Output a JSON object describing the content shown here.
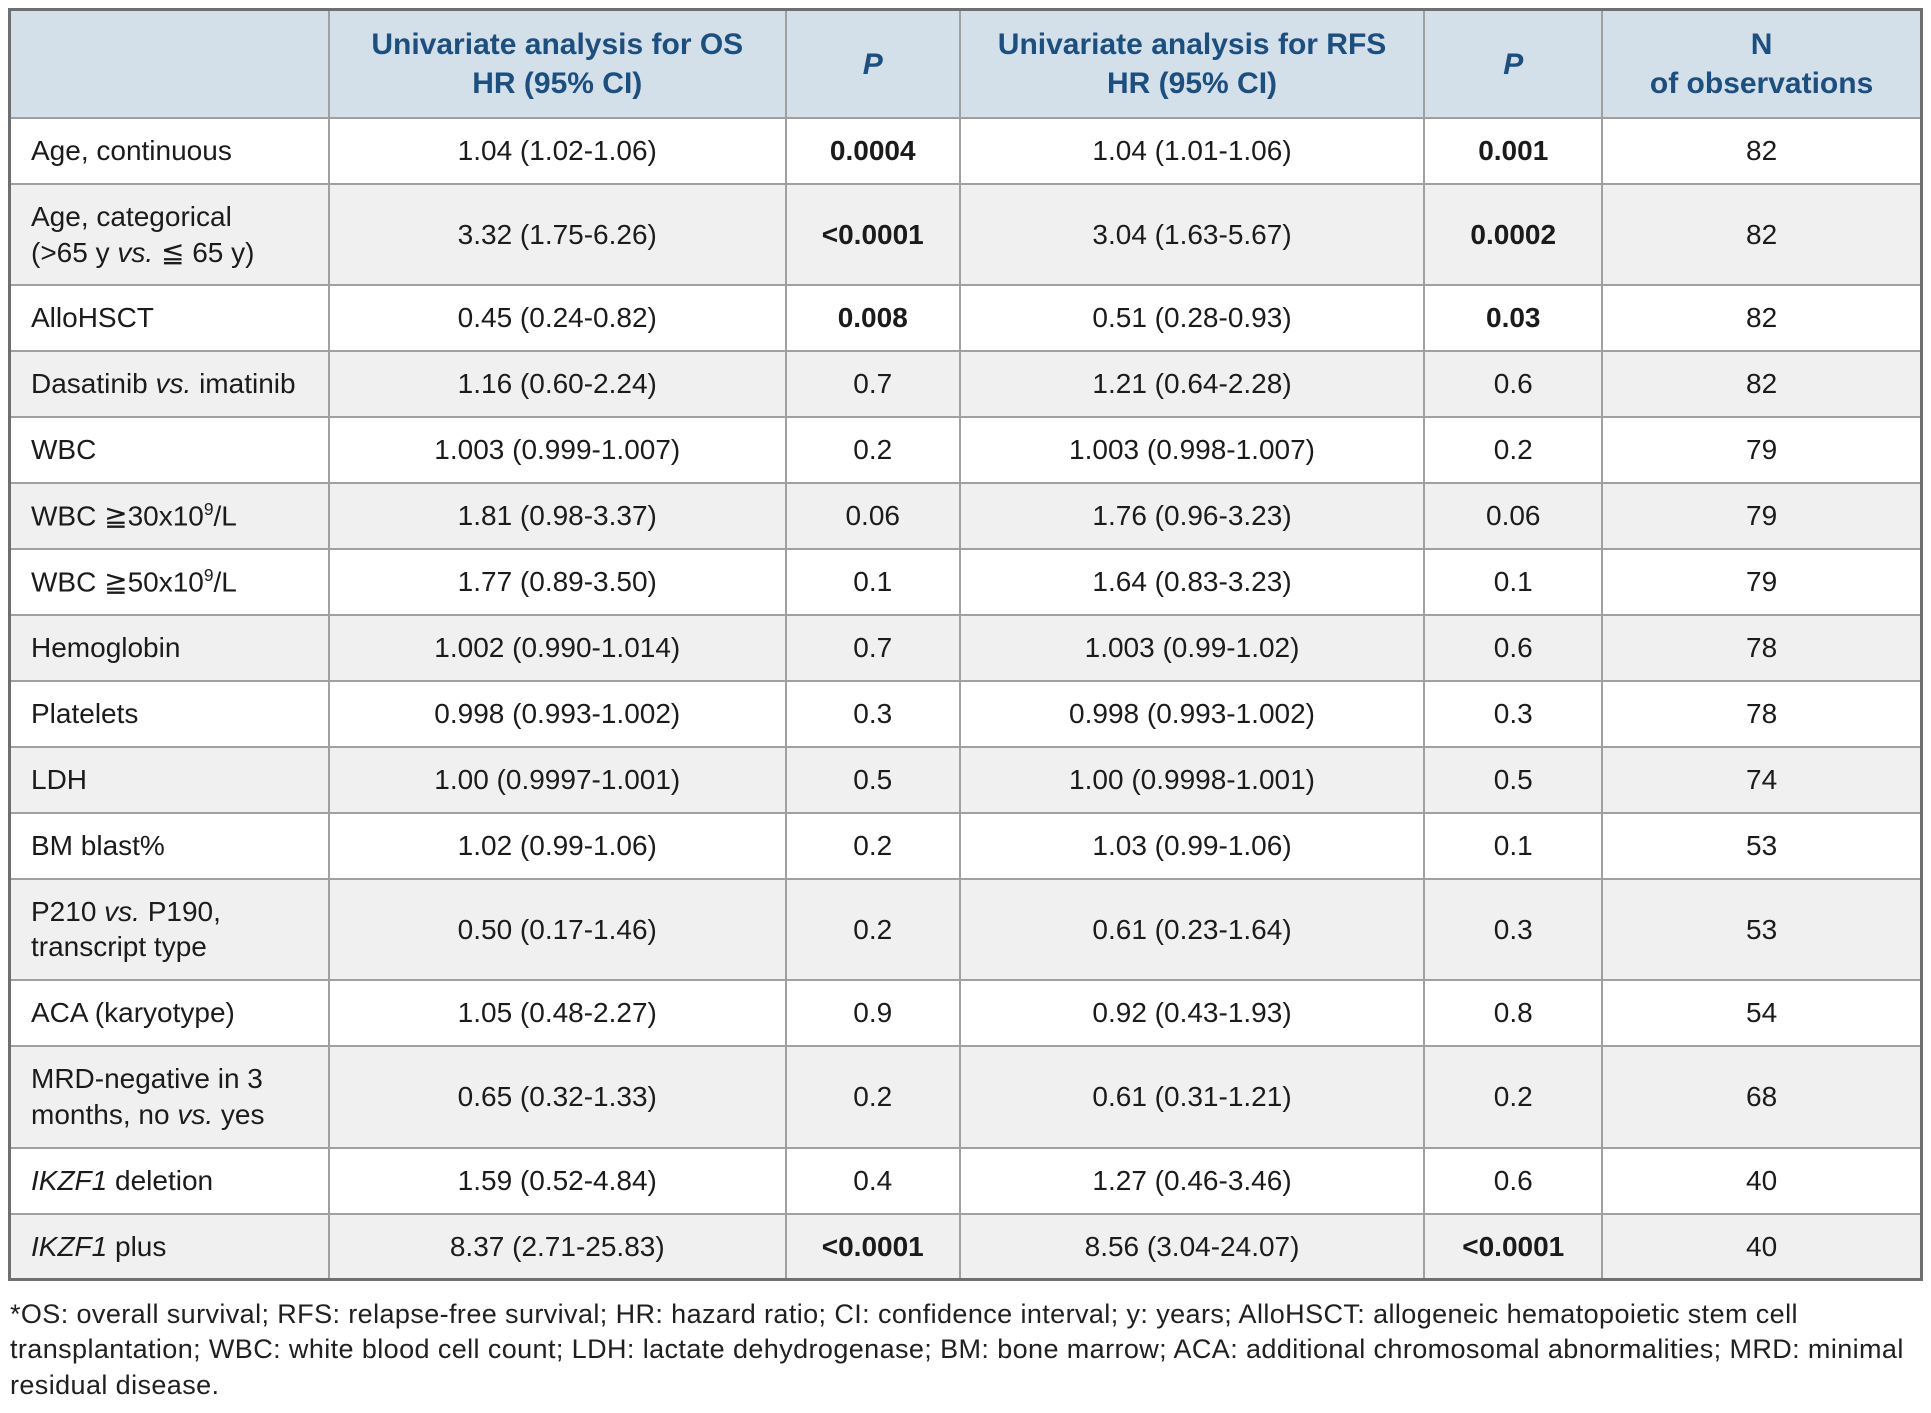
{
  "colors": {
    "header_bg": "#d3dfe9",
    "header_text": "#1c4e7e",
    "row_alt_bg": "#f0f0f0",
    "inner_border": "#a0a0a0",
    "outer_border": "#6f6f6f"
  },
  "table": {
    "columns": [
      {
        "label_html": ""
      },
      {
        "label_html": "Univariate analysis for OS<br>HR (95% CI)"
      },
      {
        "label_html": "P"
      },
      {
        "label_html": "Univariate analysis for RFS<br>HR (95% CI)"
      },
      {
        "label_html": "P"
      },
      {
        "label_html": "N<br>of observations"
      }
    ],
    "rows": [
      {
        "variable_html": "Age, continuous",
        "os_hr": "1.04 (1.02-1.06)",
        "os_p": "0.0004",
        "os_p_sig": true,
        "rfs_hr": "1.04 (1.01-1.06)",
        "rfs_p": "0.001",
        "rfs_p_sig": true,
        "n": "82"
      },
      {
        "variable_html": "Age, categorical<br>(&gt;65 y <i>vs.</i> ≦ 65 y)",
        "os_hr": "3.32 (1.75-6.26)",
        "os_p": "<0.0001",
        "os_p_sig": true,
        "rfs_hr": "3.04 (1.63-5.67)",
        "rfs_p": "0.0002",
        "rfs_p_sig": true,
        "n": "82"
      },
      {
        "variable_html": "AlloHSCT",
        "os_hr": "0.45 (0.24-0.82)",
        "os_p": "0.008",
        "os_p_sig": true,
        "rfs_hr": "0.51 (0.28-0.93)",
        "rfs_p": "0.03",
        "rfs_p_sig": true,
        "n": "82"
      },
      {
        "variable_html": "Dasatinib <i>vs.</i> imatinib",
        "os_hr": "1.16 (0.60-2.24)",
        "os_p": "0.7",
        "os_p_sig": false,
        "rfs_hr": "1.21 (0.64-2.28)",
        "rfs_p": "0.6",
        "rfs_p_sig": false,
        "n": "82"
      },
      {
        "variable_html": "WBC",
        "os_hr": "1.003 (0.999-1.007)",
        "os_p": "0.2",
        "os_p_sig": false,
        "rfs_hr": "1.003 (0.998-1.007)",
        "rfs_p": "0.2",
        "rfs_p_sig": false,
        "n": "79"
      },
      {
        "variable_html": "WBC ≧30x10<sup>9</sup>/L",
        "os_hr": "1.81 (0.98-3.37)",
        "os_p": "0.06",
        "os_p_sig": false,
        "rfs_hr": "1.76 (0.96-3.23)",
        "rfs_p": "0.06",
        "rfs_p_sig": false,
        "n": "79"
      },
      {
        "variable_html": "WBC ≧50x10<sup>9</sup>/L",
        "os_hr": "1.77 (0.89-3.50)",
        "os_p": "0.1",
        "os_p_sig": false,
        "rfs_hr": "1.64 (0.83-3.23)",
        "rfs_p": "0.1",
        "rfs_p_sig": false,
        "n": "79"
      },
      {
        "variable_html": "Hemoglobin",
        "os_hr": "1.002 (0.990-1.014)",
        "os_p": "0.7",
        "os_p_sig": false,
        "rfs_hr": "1.003 (0.99-1.02)",
        "rfs_p": "0.6",
        "rfs_p_sig": false,
        "n": "78"
      },
      {
        "variable_html": "Platelets",
        "os_hr": "0.998 (0.993-1.002)",
        "os_p": "0.3",
        "os_p_sig": false,
        "rfs_hr": "0.998 (0.993-1.002)",
        "rfs_p": "0.3",
        "rfs_p_sig": false,
        "n": "78"
      },
      {
        "variable_html": "LDH",
        "os_hr": "1.00 (0.9997-1.001)",
        "os_p": "0.5",
        "os_p_sig": false,
        "rfs_hr": "1.00 (0.9998-1.001)",
        "rfs_p": "0.5",
        "rfs_p_sig": false,
        "n": "74"
      },
      {
        "variable_html": "BM blast%",
        "os_hr": "1.02 (0.99-1.06)",
        "os_p": "0.2",
        "os_p_sig": false,
        "rfs_hr": "1.03 (0.99-1.06)",
        "rfs_p": "0.1",
        "rfs_p_sig": false,
        "n": "53"
      },
      {
        "variable_html": "P210 <i>vs.</i> P190,<br>transcript type",
        "os_hr": "0.50 (0.17-1.46)",
        "os_p": "0.2",
        "os_p_sig": false,
        "rfs_hr": "0.61 (0.23-1.64)",
        "rfs_p": "0.3",
        "rfs_p_sig": false,
        "n": "53"
      },
      {
        "variable_html": "ACA (karyotype)",
        "os_hr": "1.05 (0.48-2.27)",
        "os_p": "0.9",
        "os_p_sig": false,
        "rfs_hr": "0.92 (0.43-1.93)",
        "rfs_p": "0.8",
        "rfs_p_sig": false,
        "n": "54"
      },
      {
        "variable_html": "MRD-negative in 3<br>months, no <i>vs.</i> yes",
        "os_hr": "0.65 (0.32-1.33)",
        "os_p": "0.2",
        "os_p_sig": false,
        "rfs_hr": "0.61 (0.31-1.21)",
        "rfs_p": "0.2",
        "rfs_p_sig": false,
        "n": "68"
      },
      {
        "variable_html": "<i>IKZF1</i> deletion",
        "os_hr": "1.59 (0.52-4.84)",
        "os_p": "0.4",
        "os_p_sig": false,
        "rfs_hr": "1.27 (0.46-3.46)",
        "rfs_p": "0.6",
        "rfs_p_sig": false,
        "n": "40"
      },
      {
        "variable_html": "<i>IKZF1</i> plus",
        "os_hr": "8.37 (2.71-25.83)",
        "os_p": "<0.0001",
        "os_p_sig": true,
        "rfs_hr": "8.56 (3.04-24.07)",
        "rfs_p": "<0.0001",
        "rfs_p_sig": true,
        "n": "40"
      }
    ]
  },
  "footnote": "*OS: overall survival; RFS: relapse-free survival; HR: hazard ratio; CI: confidence interval; y: years; AlloHSCT: allogeneic hematopoietic stem cell transplantation; WBC:  white blood cell count; LDH: lactate dehydrogenase; BM: bone marrow; ACA: additional chromosomal abnormalities; MRD: minimal residual disease."
}
